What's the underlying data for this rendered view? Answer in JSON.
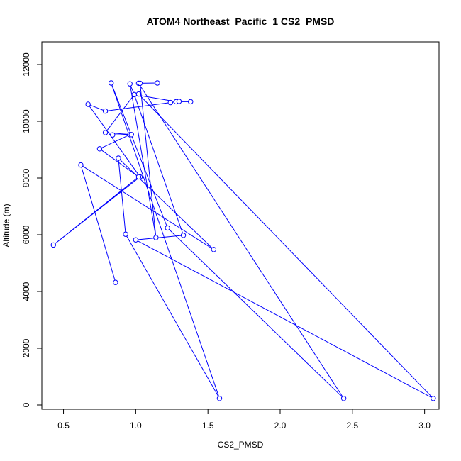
{
  "chart_data": {
    "type": "scatter",
    "title": "ATOM4 Northeast_Pacific_1 CS2_PMSD",
    "xlabel": "CS2_PMSD",
    "ylabel": "Altitude (m)",
    "xlim": [
      0.35,
      3.1
    ],
    "ylim": [
      -150,
      12800
    ],
    "xticks": [
      0.5,
      1.0,
      1.5,
      2.0,
      2.5,
      3.0
    ],
    "xtick_labels": [
      "0.5",
      "1.0",
      "1.5",
      "2.0",
      "2.5",
      "3.0"
    ],
    "yticks": [
      0,
      2000,
      4000,
      6000,
      8000,
      10000,
      12000
    ],
    "ytick_labels": [
      "0",
      "2000",
      "4000",
      "6000",
      "8000",
      "10000",
      "12000"
    ],
    "grid": false,
    "series_color": "#0000ff",
    "x": [
      0.86,
      0.62,
      1.54,
      0.88,
      0.93,
      1.58,
      0.83,
      1.22,
      2.44,
      1.02,
      1.15,
      1.03,
      1.14,
      0.96,
      0.99,
      1.28,
      1.38,
      1.3,
      1.24,
      0.79,
      0.67,
      1.03,
      0.43,
      1.02,
      0.75,
      0.96,
      0.84,
      0.97,
      0.79,
      0.99,
      1.33,
      1.0,
      3.06,
      1.02
    ],
    "y": [
      4320,
      8460,
      5480,
      8700,
      6020,
      230,
      11350,
      6240,
      230,
      11340,
      11350,
      11340,
      5900,
      11320,
      10940,
      10690,
      10690,
      10700,
      10660,
      10360,
      10600,
      8040,
      5640,
      8040,
      9030,
      9530,
      9520,
      9530,
      9600,
      10940,
      5980,
      5820,
      230,
      10960
    ]
  }
}
